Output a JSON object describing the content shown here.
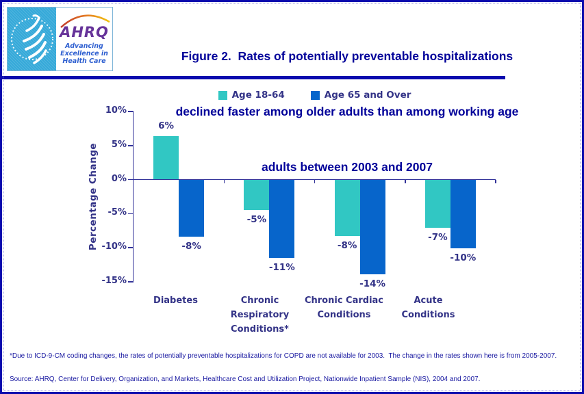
{
  "header": {
    "logo": {
      "ahrq_wordmark": "AHRQ",
      "tagline_lines": [
        "Advancing",
        "Excellence in",
        "Health Care"
      ]
    },
    "title_lines": [
      "Figure 2.  Rates of potentially preventable hospitalizations",
      "declined faster among older adults than among working age",
      "adults between 2003 and 2007"
    ]
  },
  "chart_data": {
    "type": "bar",
    "categories": [
      "Diabetes",
      "Chronic Respiratory Conditions*",
      "Chronic Cardiac Conditions",
      "Acute Conditions"
    ],
    "category_label_lines": [
      [
        "Diabetes"
      ],
      [
        "Chronic",
        "Respiratory",
        "Conditions*"
      ],
      [
        "Chronic Cardiac",
        "Conditions"
      ],
      [
        "Acute Conditions"
      ]
    ],
    "series": [
      {
        "name": "Age 18-64",
        "color": "#31C7C3",
        "values": [
          6,
          -5,
          -8,
          -7
        ],
        "bar_values_precise": [
          6.4,
          -4.5,
          -8.3,
          -7.1
        ],
        "labels": [
          "6%",
          "-5%",
          "-8%",
          "-7%"
        ]
      },
      {
        "name": "Age 65 and Over",
        "color": "#0765CB",
        "values": [
          -8,
          -11,
          -14,
          -10
        ],
        "bar_values_precise": [
          -8.4,
          -11.5,
          -13.9,
          -10.1
        ],
        "labels": [
          "-8%",
          "-11%",
          "-14%",
          "-10%"
        ]
      }
    ],
    "xlabel": "",
    "ylabel": "Percentage Change",
    "ylim": [
      -15,
      10
    ],
    "ytick_step": 5,
    "ytick_labels": [
      "10%",
      "5%",
      "0%",
      "-5%",
      "-10%",
      "-15%"
    ],
    "legend_position": "top-center",
    "grid": false,
    "axis_color": "#333399",
    "label_color": "#333387"
  },
  "footnote": "*Due to ICD-9-CM coding changes, the rates of potentially preventable hospitalizations for COPD are not available for 2003.  The change in the rates shown here is from 2005-2007.",
  "source": "Source: AHRQ, Center for Delivery, Organization, and Markets, Healthcare Cost and Utilization Project, Nationwide Inpatient Sample (NIS), 2004 and 2007.",
  "colors": {
    "frame_border": "#0A0AAE",
    "title_navy": "#000099",
    "chart_text": "#333387",
    "axis": "#333399",
    "series_age_18_64": "#31C7C3",
    "series_age_65_over": "#0765CB",
    "footnote_text": "#1717A0",
    "seal_cyan": "#35A9D9",
    "ahrq_purple": "#663399",
    "tagline_blue": "#2E5FD0"
  }
}
